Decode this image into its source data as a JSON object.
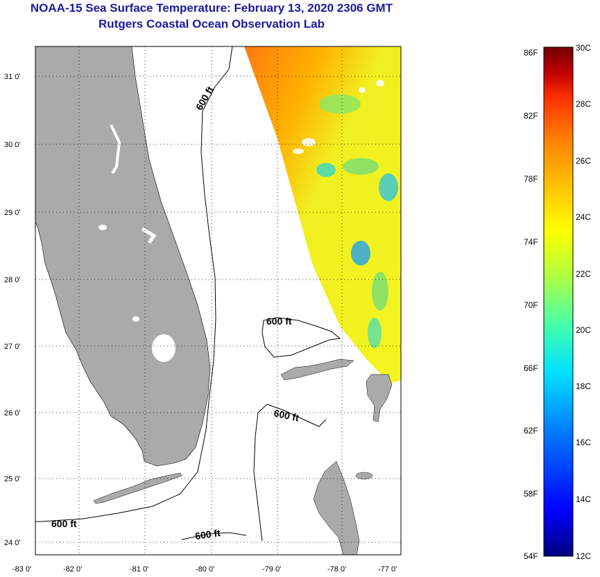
{
  "header": {
    "title": "NOAA-15 Sea Surface Temperature:  February 13, 2020 2306 GMT",
    "subtitle": "Rutgers Coastal Ocean Observation Lab"
  },
  "map": {
    "lat_labels": [
      "31 0'",
      "30 0'",
      "29 0'",
      "28 0'",
      "27 0'",
      "26 0'",
      "25 0'",
      "24 0'"
    ],
    "lon_labels": [
      "-83 0'",
      "-82 0'",
      "-81 0'",
      "-80 0'",
      "-79 0'",
      "-78 0'",
      "-77 0'"
    ],
    "isobath_labels": [
      "600 ft",
      "600 ft",
      "600 ft",
      "600 ft",
      "600 ft"
    ],
    "land_color": "#aaaaaa",
    "grid": "dotted"
  },
  "colorbar": {
    "fahrenheit_labels": [
      "86F",
      "82F",
      "78F",
      "74F",
      "70F",
      "66F",
      "62F",
      "58F",
      "54F"
    ],
    "celsius_labels": [
      "30C",
      "28C",
      "26C",
      "24C",
      "22C",
      "20C",
      "18C",
      "16C",
      "14C",
      "12C"
    ],
    "colors": [
      "#000080",
      "#0000ff",
      "#0080ff",
      "#00e0ff",
      "#40ffb0",
      "#b0ff40",
      "#ffff00",
      "#ffc000",
      "#ff8000",
      "#ff3000",
      "#c00000",
      "#700000"
    ]
  }
}
